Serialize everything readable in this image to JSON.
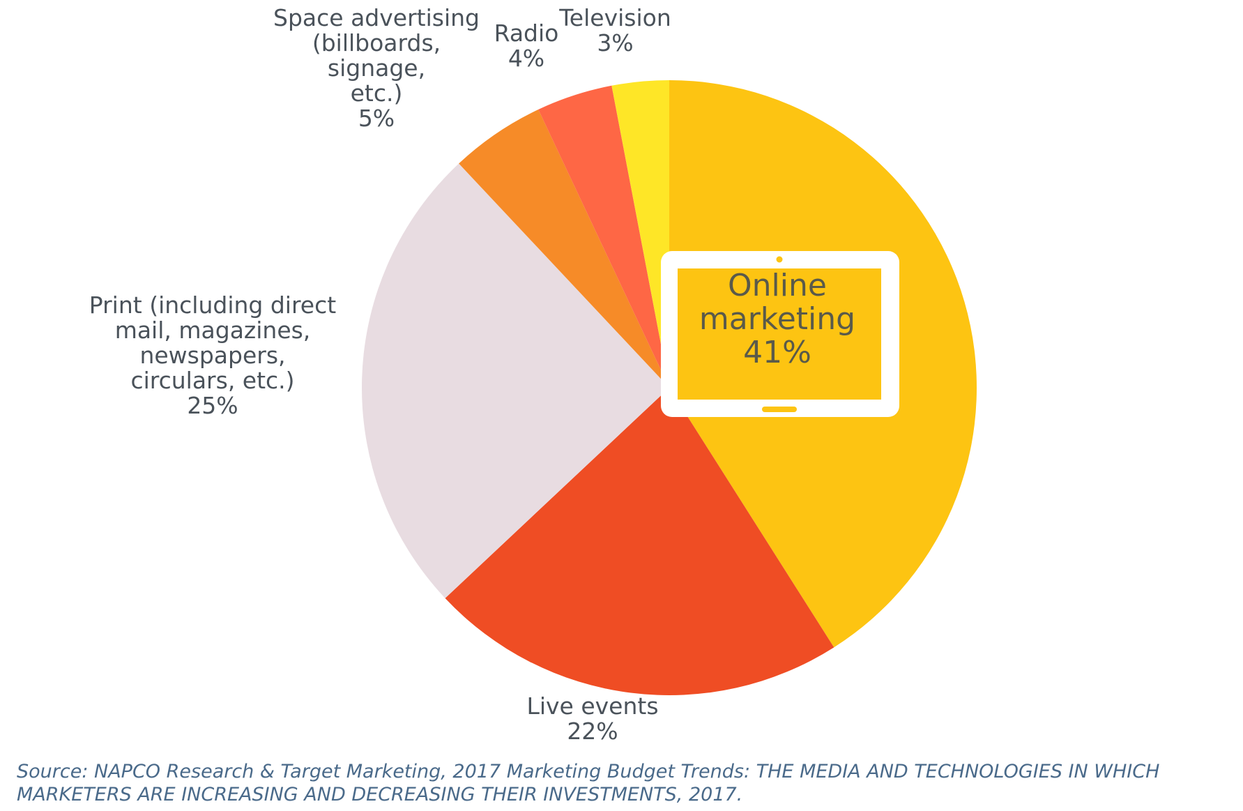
{
  "chart_data": {
    "type": "pie",
    "slices": [
      {
        "name": "Online\nmarketing",
        "value": 41,
        "label": "41%",
        "color": "#fdc412"
      },
      {
        "name": "Live events",
        "value": 22,
        "label": "22%",
        "color": "#ef4d24"
      },
      {
        "name": "Print (including direct\nmail, magazines,\nnewspapers,\ncirculars, etc.)",
        "value": 25,
        "label": "25%",
        "color": "#e8dce1"
      },
      {
        "name": "Space advertising\n(billboards, signage,\netc.)",
        "value": 5,
        "label": "5%",
        "color": "#f68b28"
      },
      {
        "name": "Radio",
        "value": 4,
        "label": "4%",
        "color": "#fe6745"
      },
      {
        "name": "Television",
        "value": 3,
        "label": "3%",
        "color": "#fee627"
      }
    ],
    "icons": {
      "online_marketing": "tablet-icon"
    }
  },
  "source_note": "Source: NAPCO Research & Target Marketing, 2017 Marketing Budget Trends: THE MEDIA AND TECHNOLOGIES IN WHICH MARKETERS ARE INCREASING AND DECREASING THEIR INVESTMENTS, 2017."
}
